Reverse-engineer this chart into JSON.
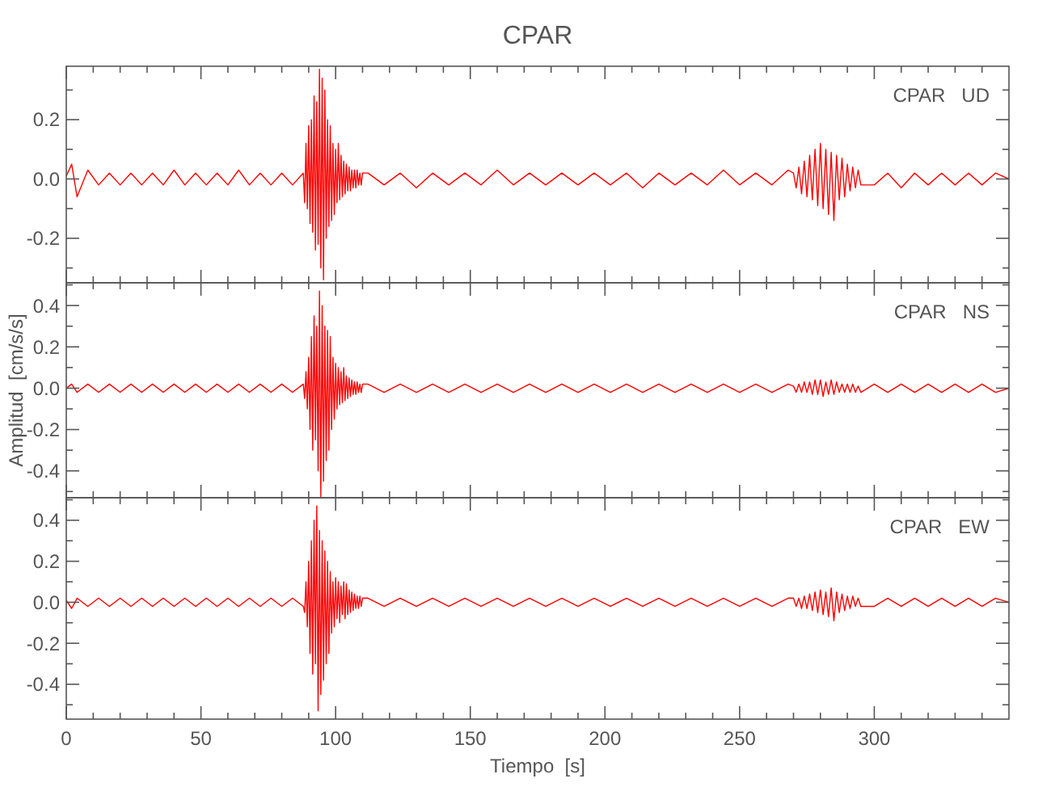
{
  "chart_data": [
    {
      "type": "line",
      "title": "CPAR",
      "annotations": [
        "CPAR   UD"
      ],
      "xlim": [
        0,
        350
      ],
      "ylim": [
        -0.35,
        0.38
      ],
      "tick_labels": "y",
      "xticks": [
        0,
        {
          "value": 10,
          "label": null
        },
        {
          "value": 20,
          "label": null
        },
        {
          "value": 30,
          "label": null
        },
        {
          "value": 40,
          "label": null
        },
        50,
        {
          "value": 60,
          "label": null
        },
        {
          "value": 70,
          "label": null
        },
        {
          "value": 80,
          "label": null
        },
        {
          "value": 90,
          "label": null
        },
        100,
        {
          "value": 110,
          "label": null
        },
        {
          "value": 120,
          "label": null
        },
        {
          "value": 130,
          "label": null
        },
        {
          "value": 140,
          "label": null
        },
        150,
        {
          "value": 160,
          "label": null
        },
        {
          "value": 170,
          "label": null
        },
        {
          "value": 180,
          "label": null
        },
        {
          "value": 190,
          "label": null
        },
        200,
        {
          "value": 210,
          "label": null
        },
        {
          "value": 220,
          "label": null
        },
        {
          "value": 230,
          "label": null
        },
        {
          "value": 240,
          "label": null
        },
        250,
        {
          "value": 260,
          "label": null
        },
        {
          "value": 270,
          "label": null
        },
        {
          "value": 280,
          "label": null
        },
        {
          "value": 290,
          "label": null
        },
        300,
        {
          "value": 310,
          "label": null
        },
        {
          "value": 320,
          "label": null
        },
        {
          "value": 330,
          "label": null
        },
        {
          "value": 340,
          "label": null
        }
      ],
      "yticks": [
        {
          "value": -0.3,
          "label": null
        },
        {
          "value": -0.2,
          "label": "-0.2"
        },
        {
          "value": -0.1,
          "label": null
        },
        {
          "value": 0,
          "label": "0.0"
        },
        {
          "value": 0.1,
          "label": null
        },
        {
          "value": 0.2,
          "label": "0.2"
        },
        {
          "value": 0.3,
          "label": null
        }
      ],
      "series": [
        {
          "color": "#ff0000",
          "x": [
            0,
            2,
            4,
            8,
            12,
            16,
            20,
            24,
            28,
            32,
            36,
            40,
            44,
            48,
            52,
            56,
            60,
            64,
            68,
            72,
            76,
            80,
            84,
            88,
            88.5,
            89,
            89.5,
            90,
            90.5,
            91,
            91.5,
            92,
            92.5,
            93,
            93.5,
            94,
            94.5,
            95,
            95.5,
            96,
            96.5,
            97,
            97.5,
            98,
            98.5,
            99,
            99.5,
            100,
            100.5,
            101,
            101.5,
            102,
            102.5,
            103,
            103.5,
            104,
            104.5,
            105,
            105.5,
            106,
            106.5,
            107,
            107.5,
            108,
            108.5,
            109,
            109.5,
            110,
            112,
            118,
            124,
            130,
            136,
            142,
            148,
            154,
            160,
            166,
            172,
            178,
            184,
            190,
            196,
            202,
            208,
            214,
            220,
            226,
            232,
            238,
            244,
            250,
            256,
            262,
            268,
            270,
            271,
            272,
            273,
            274,
            275,
            276,
            277,
            278,
            279,
            280,
            281,
            282,
            283,
            284,
            285,
            286,
            287,
            288,
            289,
            290,
            291,
            292,
            293,
            294,
            295,
            300,
            305,
            310,
            315,
            320,
            325,
            330,
            335,
            340,
            345,
            350
          ],
          "values": [
            0.01,
            0.05,
            -0.06,
            0.03,
            -0.02,
            0.02,
            -0.02,
            0.02,
            -0.02,
            0.02,
            -0.02,
            0.03,
            -0.02,
            0.02,
            -0.02,
            0.02,
            -0.02,
            0.03,
            -0.02,
            0.02,
            -0.02,
            0.02,
            -0.02,
            0.02,
            -0.08,
            0.12,
            -0.1,
            0.18,
            -0.15,
            0.2,
            -0.18,
            0.28,
            -0.24,
            0.26,
            -0.22,
            0.37,
            -0.3,
            0.34,
            -0.34,
            0.3,
            -0.2,
            0.2,
            -0.16,
            0.18,
            -0.14,
            0.12,
            -0.12,
            0.1,
            -0.08,
            0.12,
            -0.07,
            0.08,
            -0.06,
            0.06,
            -0.05,
            0.05,
            -0.04,
            0.04,
            -0.04,
            0.03,
            -0.03,
            0.03,
            -0.03,
            0.03,
            -0.02,
            0.02,
            -0.02,
            0.02,
            0.02,
            -0.02,
            0.02,
            -0.03,
            0.02,
            -0.02,
            0.02,
            -0.02,
            0.03,
            -0.02,
            0.02,
            -0.02,
            0.02,
            -0.02,
            0.02,
            -0.02,
            0.02,
            -0.03,
            0.02,
            -0.02,
            0.02,
            -0.02,
            0.03,
            -0.02,
            0.02,
            -0.02,
            0.03,
            0.02,
            -0.03,
            0.04,
            -0.05,
            0.06,
            -0.06,
            0.08,
            -0.07,
            0.1,
            -0.09,
            0.12,
            -0.1,
            0.1,
            -0.12,
            0.09,
            -0.14,
            0.08,
            -0.07,
            0.07,
            -0.06,
            0.05,
            -0.04,
            0.04,
            -0.03,
            0.03,
            -0.02,
            -0.02,
            0.02,
            -0.03,
            0.02,
            -0.02,
            0.02,
            -0.02,
            0.02,
            -0.02,
            0.02,
            0.0
          ]
        }
      ]
    },
    {
      "type": "line",
      "ylabel": "Amplitud  [cm/s/s]",
      "annotations": [
        "CPAR   NS"
      ],
      "xlim": [
        0,
        350
      ],
      "ylim": [
        -0.53,
        0.51
      ],
      "tick_labels": "y",
      "xticks": [
        0,
        {
          "value": 10,
          "label": null
        },
        {
          "value": 20,
          "label": null
        },
        {
          "value": 30,
          "label": null
        },
        {
          "value": 40,
          "label": null
        },
        50,
        {
          "value": 60,
          "label": null
        },
        {
          "value": 70,
          "label": null
        },
        {
          "value": 80,
          "label": null
        },
        {
          "value": 90,
          "label": null
        },
        100,
        {
          "value": 110,
          "label": null
        },
        {
          "value": 120,
          "label": null
        },
        {
          "value": 130,
          "label": null
        },
        {
          "value": 140,
          "label": null
        },
        150,
        {
          "value": 160,
          "label": null
        },
        {
          "value": 170,
          "label": null
        },
        {
          "value": 180,
          "label": null
        },
        {
          "value": 190,
          "label": null
        },
        200,
        {
          "value": 210,
          "label": null
        },
        {
          "value": 220,
          "label": null
        },
        {
          "value": 230,
          "label": null
        },
        {
          "value": 240,
          "label": null
        },
        250,
        {
          "value": 260,
          "label": null
        },
        {
          "value": 270,
          "label": null
        },
        {
          "value": 280,
          "label": null
        },
        {
          "value": 290,
          "label": null
        },
        300,
        {
          "value": 310,
          "label": null
        },
        {
          "value": 320,
          "label": null
        },
        {
          "value": 330,
          "label": null
        },
        {
          "value": 340,
          "label": null
        }
      ],
      "yticks": [
        {
          "value": -0.5,
          "label": null
        },
        {
          "value": -0.4,
          "label": "-0.4"
        },
        {
          "value": -0.3,
          "label": null
        },
        {
          "value": -0.2,
          "label": "-0.2"
        },
        {
          "value": -0.1,
          "label": null
        },
        {
          "value": 0,
          "label": "0.0"
        },
        {
          "value": 0.1,
          "label": null
        },
        {
          "value": 0.2,
          "label": "0.2"
        },
        {
          "value": 0.3,
          "label": null
        },
        {
          "value": 0.4,
          "label": "0.4"
        },
        {
          "value": 0.5,
          "label": null
        }
      ],
      "series": [
        {
          "color": "#ff0000",
          "x": [
            0,
            2,
            4,
            8,
            12,
            16,
            20,
            24,
            28,
            32,
            36,
            40,
            44,
            48,
            52,
            56,
            60,
            64,
            68,
            72,
            76,
            80,
            84,
            88,
            88.5,
            89,
            89.5,
            90,
            90.5,
            91,
            91.5,
            92,
            92.5,
            93,
            93.5,
            94,
            94.5,
            95,
            95.5,
            96,
            96.5,
            97,
            97.5,
            98,
            98.5,
            99,
            99.5,
            100,
            100.5,
            101,
            101.5,
            102,
            102.5,
            103,
            103.5,
            104,
            104.5,
            105,
            105.5,
            106,
            106.5,
            107,
            107.5,
            108,
            108.5,
            109,
            109.5,
            110,
            112,
            118,
            124,
            130,
            136,
            142,
            148,
            154,
            160,
            166,
            172,
            178,
            184,
            190,
            196,
            202,
            208,
            214,
            220,
            226,
            232,
            238,
            244,
            250,
            256,
            262,
            268,
            270,
            271,
            272,
            273,
            274,
            275,
            276,
            277,
            278,
            279,
            280,
            281,
            282,
            283,
            284,
            285,
            286,
            287,
            288,
            289,
            290,
            291,
            292,
            293,
            294,
            295,
            300,
            305,
            310,
            315,
            320,
            325,
            330,
            335,
            340,
            345,
            350
          ],
          "values": [
            0.0,
            0.02,
            -0.02,
            0.02,
            -0.02,
            0.02,
            -0.02,
            0.02,
            -0.02,
            0.02,
            -0.02,
            0.02,
            -0.02,
            0.02,
            -0.02,
            0.02,
            -0.02,
            0.02,
            -0.02,
            0.02,
            -0.02,
            0.02,
            -0.02,
            0.02,
            -0.05,
            0.08,
            -0.1,
            0.15,
            -0.2,
            0.25,
            -0.3,
            0.35,
            -0.25,
            0.3,
            -0.4,
            0.47,
            -0.53,
            0.4,
            -0.45,
            0.3,
            -0.35,
            0.28,
            -0.3,
            0.25,
            -0.2,
            0.15,
            -0.15,
            0.12,
            -0.1,
            0.1,
            -0.08,
            0.08,
            -0.07,
            0.1,
            -0.06,
            0.06,
            -0.05,
            0.05,
            -0.04,
            0.04,
            -0.03,
            0.03,
            -0.03,
            0.03,
            -0.02,
            0.02,
            -0.02,
            0.02,
            0.02,
            -0.02,
            0.02,
            -0.02,
            0.02,
            -0.02,
            0.02,
            -0.02,
            0.02,
            -0.02,
            0.02,
            -0.02,
            0.02,
            -0.02,
            0.02,
            -0.02,
            0.02,
            -0.02,
            0.02,
            -0.02,
            0.02,
            -0.02,
            0.02,
            -0.02,
            0.02,
            -0.02,
            0.02,
            0.01,
            -0.02,
            0.02,
            -0.02,
            0.03,
            -0.02,
            0.03,
            -0.03,
            0.04,
            -0.03,
            0.04,
            -0.04,
            0.03,
            -0.03,
            0.04,
            -0.03,
            0.03,
            -0.02,
            0.02,
            -0.02,
            0.02,
            -0.02,
            0.02,
            -0.02,
            0.01,
            -0.02,
            0.02,
            -0.02,
            0.02,
            -0.02,
            0.02,
            -0.02,
            0.02,
            -0.02,
            0.02,
            -0.02,
            0.0
          ]
        }
      ]
    },
    {
      "type": "line",
      "xlabel": "Tiempo  [s]",
      "annotations": [
        "CPAR   EW"
      ],
      "xlim": [
        0,
        350
      ],
      "ylim": [
        -0.57,
        0.51
      ],
      "xticks": [
        {
          "value": 0,
          "label": "0"
        },
        {
          "value": 10,
          "label": null
        },
        {
          "value": 20,
          "label": null
        },
        {
          "value": 30,
          "label": null
        },
        {
          "value": 40,
          "label": null
        },
        {
          "value": 50,
          "label": "50"
        },
        {
          "value": 60,
          "label": null
        },
        {
          "value": 70,
          "label": null
        },
        {
          "value": 80,
          "label": null
        },
        {
          "value": 90,
          "label": null
        },
        {
          "value": 100,
          "label": "100"
        },
        {
          "value": 110,
          "label": null
        },
        {
          "value": 120,
          "label": null
        },
        {
          "value": 130,
          "label": null
        },
        {
          "value": 140,
          "label": null
        },
        {
          "value": 150,
          "label": "150"
        },
        {
          "value": 160,
          "label": null
        },
        {
          "value": 170,
          "label": null
        },
        {
          "value": 180,
          "label": null
        },
        {
          "value": 190,
          "label": null
        },
        {
          "value": 200,
          "label": "200"
        },
        {
          "value": 210,
          "label": null
        },
        {
          "value": 220,
          "label": null
        },
        {
          "value": 230,
          "label": null
        },
        {
          "value": 240,
          "label": null
        },
        {
          "value": 250,
          "label": "250"
        },
        {
          "value": 260,
          "label": null
        },
        {
          "value": 270,
          "label": null
        },
        {
          "value": 280,
          "label": null
        },
        {
          "value": 290,
          "label": null
        },
        {
          "value": 300,
          "label": "300"
        },
        {
          "value": 310,
          "label": null
        },
        {
          "value": 320,
          "label": null
        },
        {
          "value": 330,
          "label": null
        },
        {
          "value": 340,
          "label": null
        }
      ],
      "yticks": [
        {
          "value": -0.5,
          "label": null
        },
        {
          "value": -0.4,
          "label": "-0.4"
        },
        {
          "value": -0.3,
          "label": null
        },
        {
          "value": -0.2,
          "label": "-0.2"
        },
        {
          "value": -0.1,
          "label": null
        },
        {
          "value": 0,
          "label": "0.0"
        },
        {
          "value": 0.1,
          "label": null
        },
        {
          "value": 0.2,
          "label": "0.2"
        },
        {
          "value": 0.3,
          "label": null
        },
        {
          "value": 0.4,
          "label": "0.4"
        },
        {
          "value": 0.5,
          "label": null
        }
      ],
      "series": [
        {
          "color": "#ff0000",
          "x": [
            0,
            2,
            4,
            8,
            12,
            16,
            20,
            24,
            28,
            32,
            36,
            40,
            44,
            48,
            52,
            56,
            60,
            64,
            68,
            72,
            76,
            80,
            84,
            88,
            88.5,
            89,
            89.5,
            90,
            90.5,
            91,
            91.5,
            92,
            92.5,
            93,
            93.5,
            94,
            94.5,
            95,
            95.5,
            96,
            96.5,
            97,
            97.5,
            98,
            98.5,
            99,
            99.5,
            100,
            100.5,
            101,
            101.5,
            102,
            102.5,
            103,
            103.5,
            104,
            104.5,
            105,
            105.5,
            106,
            106.5,
            107,
            107.5,
            108,
            108.5,
            109,
            109.5,
            110,
            112,
            118,
            124,
            130,
            136,
            142,
            148,
            154,
            160,
            166,
            172,
            178,
            184,
            190,
            196,
            202,
            208,
            214,
            220,
            226,
            232,
            238,
            244,
            250,
            256,
            262,
            268,
            270,
            271,
            272,
            273,
            274,
            275,
            276,
            277,
            278,
            279,
            280,
            281,
            282,
            283,
            284,
            285,
            286,
            287,
            288,
            289,
            290,
            291,
            292,
            293,
            294,
            295,
            300,
            305,
            310,
            315,
            320,
            325,
            330,
            335,
            340,
            345,
            350
          ],
          "values": [
            0.01,
            -0.03,
            0.02,
            -0.02,
            0.02,
            -0.02,
            0.02,
            -0.02,
            0.02,
            -0.02,
            0.02,
            -0.02,
            0.02,
            -0.02,
            0.02,
            -0.02,
            0.02,
            -0.02,
            0.02,
            -0.02,
            0.02,
            -0.02,
            0.02,
            -0.02,
            -0.05,
            0.1,
            -0.12,
            0.2,
            -0.25,
            0.3,
            -0.35,
            0.4,
            -0.3,
            0.47,
            -0.53,
            0.35,
            -0.45,
            0.3,
            -0.38,
            0.25,
            -0.3,
            0.2,
            -0.25,
            0.15,
            -0.15,
            0.1,
            -0.12,
            0.12,
            -0.08,
            0.1,
            -0.1,
            0.08,
            -0.06,
            0.1,
            -0.08,
            0.09,
            -0.06,
            0.06,
            -0.05,
            0.05,
            -0.04,
            0.04,
            -0.03,
            0.03,
            -0.03,
            0.03,
            -0.02,
            0.02,
            0.02,
            -0.02,
            0.02,
            -0.02,
            0.02,
            -0.02,
            0.02,
            -0.02,
            0.02,
            -0.02,
            0.02,
            -0.02,
            0.02,
            -0.02,
            0.02,
            -0.02,
            0.02,
            -0.02,
            0.02,
            -0.02,
            0.02,
            -0.02,
            0.02,
            -0.02,
            0.02,
            -0.02,
            0.02,
            0.02,
            -0.02,
            0.02,
            -0.03,
            0.03,
            -0.03,
            0.04,
            -0.04,
            0.05,
            -0.05,
            0.06,
            -0.06,
            0.05,
            -0.07,
            0.07,
            -0.09,
            0.05,
            -0.05,
            0.04,
            -0.04,
            0.03,
            -0.03,
            0.03,
            -0.02,
            0.02,
            -0.02,
            -0.02,
            0.02,
            -0.02,
            0.02,
            -0.02,
            0.02,
            -0.02,
            0.02,
            -0.02,
            0.02,
            0.0
          ]
        }
      ]
    }
  ]
}
